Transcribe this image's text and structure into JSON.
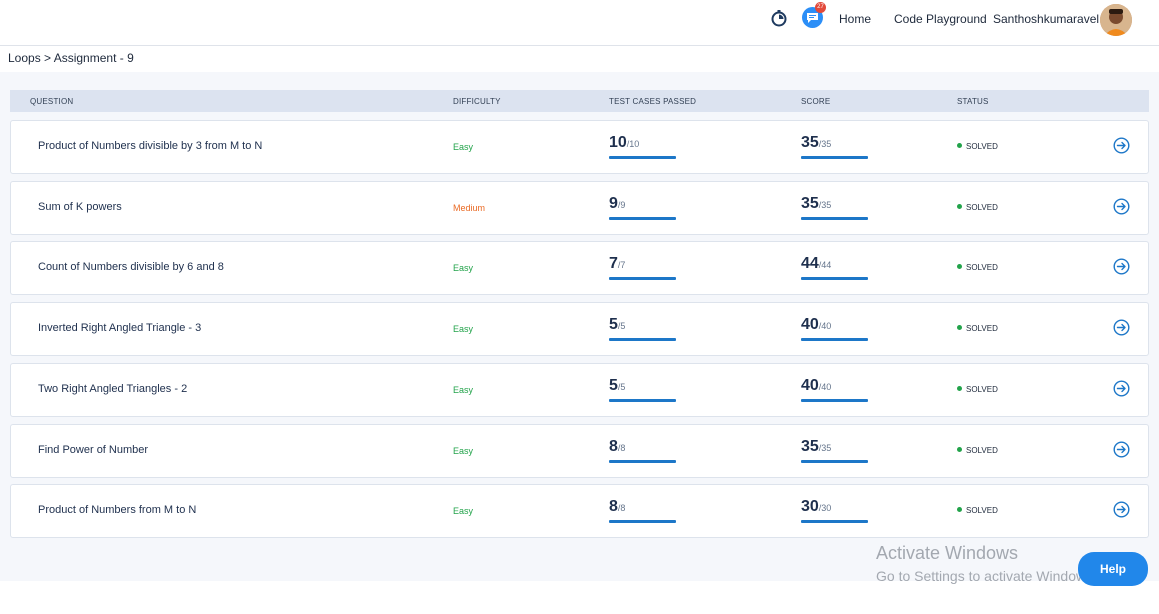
{
  "header": {
    "nav": {
      "home": "Home",
      "code_playground": "Code Playground"
    },
    "username": "Santhoshkumaravel",
    "notification_count": "27",
    "icons": {
      "timer": "stopwatch-icon",
      "messages": "chat-icon"
    }
  },
  "breadcrumb": "Loops > Assignment - 9",
  "table": {
    "headers": {
      "question": "QUESTION",
      "difficulty": "DIFFICULTY",
      "test_cases": "TEST CASES PASSED",
      "score": "SCORE",
      "status": "STATUS"
    },
    "rows": [
      {
        "question": "Product of Numbers divisible by 3 from M to N",
        "difficulty": "Easy",
        "tc_passed": "10",
        "tc_total": "/10",
        "score": "35",
        "score_total": "/35",
        "status": "SOLVED"
      },
      {
        "question": "Sum of K powers",
        "difficulty": "Medium",
        "tc_passed": "9",
        "tc_total": "/9",
        "score": "35",
        "score_total": "/35",
        "status": "SOLVED"
      },
      {
        "question": "Count of Numbers divisible by 6 and 8",
        "difficulty": "Easy",
        "tc_passed": "7",
        "tc_total": "/7",
        "score": "44",
        "score_total": "/44",
        "status": "SOLVED"
      },
      {
        "question": "Inverted Right Angled Triangle - 3",
        "difficulty": "Easy",
        "tc_passed": "5",
        "tc_total": "/5",
        "score": "40",
        "score_total": "/40",
        "status": "SOLVED"
      },
      {
        "question": "Two Right Angled Triangles - 2",
        "difficulty": "Easy",
        "tc_passed": "5",
        "tc_total": "/5",
        "score": "40",
        "score_total": "/40",
        "status": "SOLVED"
      },
      {
        "question": "Find Power of Number",
        "difficulty": "Easy",
        "tc_passed": "8",
        "tc_total": "/8",
        "score": "35",
        "score_total": "/35",
        "status": "SOLVED"
      },
      {
        "question": "Product of Numbers from M to N",
        "difficulty": "Easy",
        "tc_passed": "8",
        "tc_total": "/8",
        "score": "30",
        "score_total": "/30",
        "status": "SOLVED"
      }
    ]
  },
  "watermark": {
    "line1": "Activate Windows",
    "line2": "Go to Settings to activate Windows."
  },
  "help_label": "Help",
  "colors": {
    "accent": "#1d77c8",
    "easy": "#22a34a",
    "medium": "#ea6a24",
    "solved_dot": "#22a34a"
  }
}
